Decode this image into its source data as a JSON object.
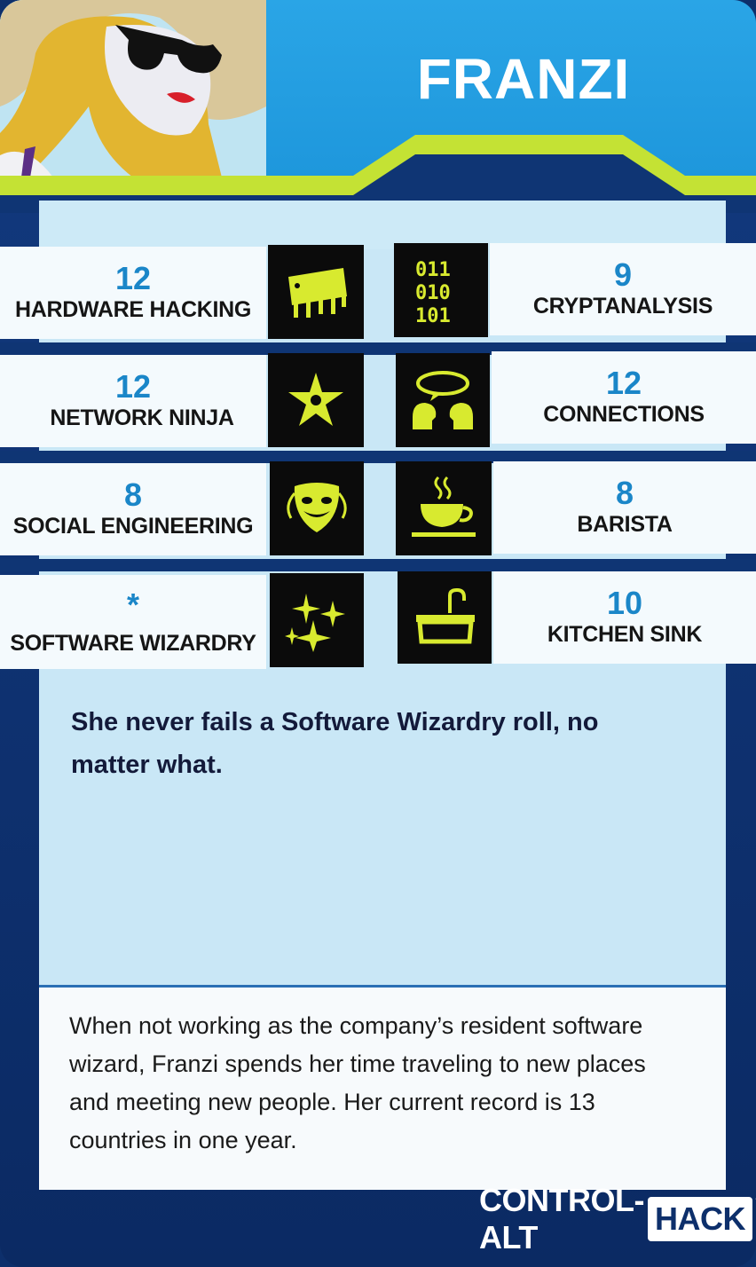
{
  "card": {
    "name": "FRANZI",
    "accent_color": "#c4e234",
    "value_color": "#1a86c8"
  },
  "stats": {
    "left": [
      {
        "value": "12",
        "label": "HARDWARE HACKING",
        "icon": "microchip-icon"
      },
      {
        "value": "12",
        "label": "NETWORK NINJA",
        "icon": "throwing-star-icon"
      },
      {
        "value": "8",
        "label": "SOCIAL ENGINEERING",
        "icon": "theater-mask-icon"
      },
      {
        "value": "*",
        "label": "SOFTWARE WIZARDRY",
        "icon": "sparkles-icon"
      }
    ],
    "right": [
      {
        "value": "9",
        "label": "CRYPTANALYSIS",
        "icon": "binary-code-icon",
        "icon_text": [
          "011",
          "010",
          "101"
        ]
      },
      {
        "value": "12",
        "label": "CONNECTIONS",
        "icon": "talking-heads-icon"
      },
      {
        "value": "8",
        "label": "BARISTA",
        "icon": "coffee-cup-icon"
      },
      {
        "value": "10",
        "label": "KITCHEN SINK",
        "icon": "sink-icon"
      }
    ]
  },
  "ability": "She never fails a Software Wizardry roll, no matter what.",
  "flavor": "When not working as the company’s resident software wizard, Franzi spends her time traveling to new places and meeting new people. Her current record is 13 countries in one year.",
  "logo": {
    "part1": "CONTROL-ALT",
    "part2": "HACK",
    "tm": "™"
  }
}
